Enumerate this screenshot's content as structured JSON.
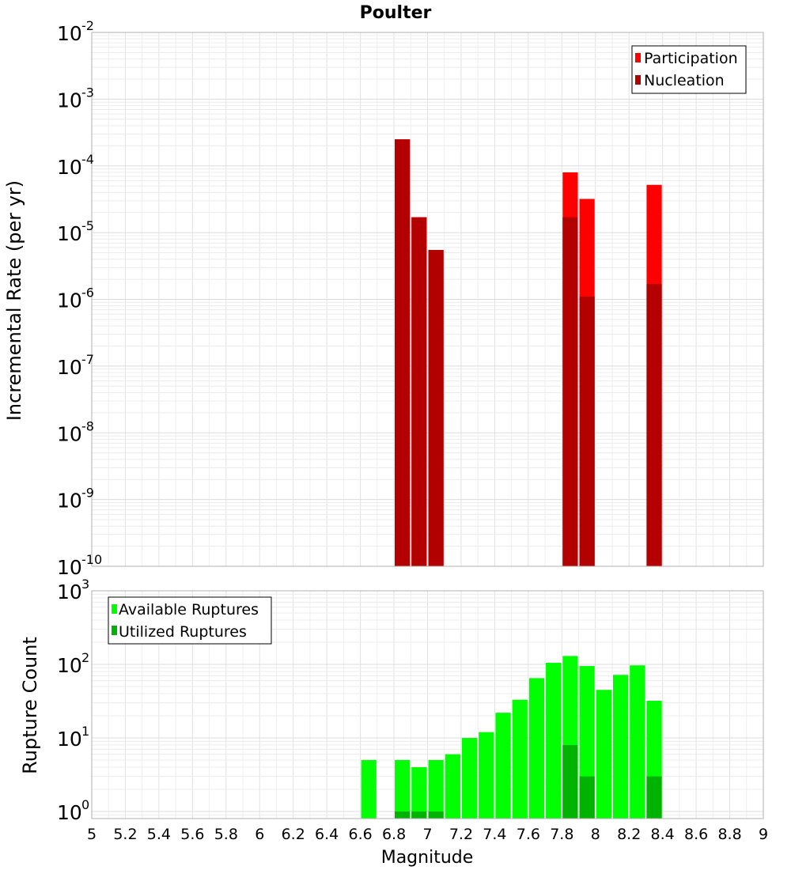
{
  "chart_data": [
    {
      "type": "bar",
      "title": "Poulter",
      "ylabel": "Incremental Rate (per yr)",
      "yscale": "log",
      "ylim": [
        1e-10,
        0.01
      ],
      "ytick_exponents": [
        "-10",
        "-9",
        "-8",
        "-7",
        "-6",
        "-5",
        "-4",
        "-3",
        "-2"
      ],
      "xlim": [
        5,
        9
      ],
      "bar_width": 0.1,
      "grid": true,
      "legend_placement": "top-right",
      "series": [
        {
          "name": "Participation",
          "color": "#ff0000",
          "x": [
            6.85,
            6.95,
            7.05,
            7.85,
            7.95,
            8.35
          ],
          "values": [
            0.00025,
            1.7e-05,
            5.5e-06,
            8e-05,
            3.2e-05,
            5.2e-05
          ]
        },
        {
          "name": "Nucleation",
          "color": "#b30000",
          "x": [
            6.85,
            6.95,
            7.05,
            7.85,
            7.95,
            8.35
          ],
          "values": [
            0.00025,
            1.7e-05,
            5.5e-06,
            1.7e-05,
            1.1e-06,
            1.7e-06
          ]
        }
      ]
    },
    {
      "type": "bar",
      "ylabel": "Rupture Count",
      "xlabel": "Magnitude",
      "yscale": "log",
      "ylim": [
        0.8,
        1000
      ],
      "ytick_exponents": [
        "0",
        "1",
        "2",
        "3"
      ],
      "xlim": [
        5,
        9
      ],
      "xticks": [
        "5",
        "5.2",
        "5.4",
        "5.6",
        "5.8",
        "6",
        "6.2",
        "6.4",
        "6.6",
        "6.8",
        "7",
        "7.2",
        "7.4",
        "7.6",
        "7.8",
        "8",
        "8.2",
        "8.4",
        "8.6",
        "8.8",
        "9"
      ],
      "bar_width": 0.1,
      "grid": true,
      "legend_placement": "top-left",
      "series": [
        {
          "name": "Available Ruptures",
          "color": "#00ff00",
          "x": [
            6.65,
            6.85,
            6.95,
            7.05,
            7.15,
            7.25,
            7.35,
            7.45,
            7.55,
            7.65,
            7.75,
            7.85,
            7.95,
            8.05,
            8.15,
            8.25,
            8.35
          ],
          "values": [
            5,
            5,
            4,
            5,
            6,
            10,
            12,
            22,
            33,
            65,
            105,
            130,
            95,
            45,
            72,
            97,
            32
          ]
        },
        {
          "name": "Utilized Ruptures",
          "color": "#00b300",
          "x": [
            6.85,
            6.95,
            7.05,
            7.85,
            7.95,
            8.35
          ],
          "values": [
            1,
            1,
            1,
            8,
            3,
            3
          ]
        }
      ]
    }
  ]
}
